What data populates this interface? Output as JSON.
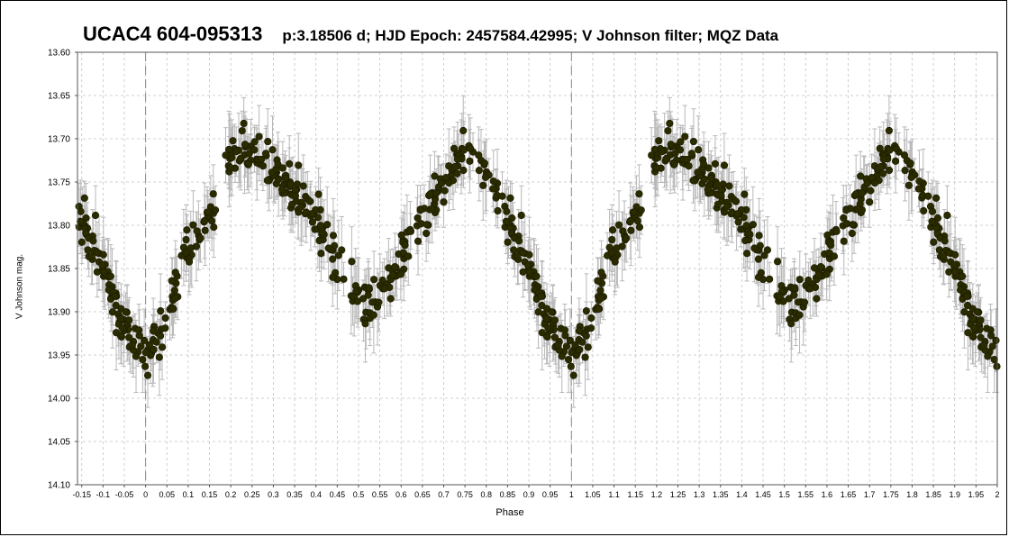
{
  "title": {
    "object": "UCAC4 604-095313",
    "details": "p:3.18506 d;   HJD Epoch: 2457584.42995; V Johnson filter; MQZ Data"
  },
  "chart_data": {
    "type": "scatter",
    "title": "UCAC4 604-095313   p:3.18506 d;   HJD Epoch: 2457584.42995; V Johnson filter; MQZ Data",
    "xlabel": "Phase",
    "ylabel": "V Johnson mag.",
    "xlim": [
      -0.16,
      2.0
    ],
    "ylim": [
      13.6,
      14.1
    ],
    "y_inverted": true,
    "grid": true,
    "error_bars": true,
    "marker_color": "#2b2b00",
    "errorbar_color": "#b8b8b8",
    "x_ticks": [
      "-0.15",
      "-0.1",
      "-0.05",
      "0",
      "0.05",
      "0.1",
      "0.15",
      "0.2",
      "0.25",
      "0.3",
      "0.35",
      "0.4",
      "0.45",
      "0.5",
      "0.55",
      "0.6",
      "0.65",
      "0.7",
      "0.75",
      "0.8",
      "0.85",
      "0.9",
      "0.95",
      "1",
      "1.05",
      "1.1",
      "1.15",
      "1.2",
      "1.25",
      "1.3",
      "1.35",
      "1.4",
      "1.45",
      "1.5",
      "1.55",
      "1.6",
      "1.65",
      "1.7",
      "1.75",
      "1.8",
      "1.85",
      "1.9",
      "1.95",
      "2"
    ],
    "y_ticks": [
      "13.60",
      "13.65",
      "13.70",
      "13.75",
      "13.80",
      "13.85",
      "13.90",
      "13.95",
      "14.00",
      "14.05",
      "14.10"
    ],
    "period_days": 3.18506,
    "epoch_hjd": 2457584.42995,
    "light_curve_nodes": [
      {
        "phase": 0.0,
        "mag": 13.955
      },
      {
        "phase": 0.03,
        "mag": 13.935
      },
      {
        "phase": 0.07,
        "mag": 13.87
      },
      {
        "phase": 0.1,
        "mag": 13.825
      },
      {
        "phase": 0.15,
        "mag": 13.79
      },
      {
        "phase": 0.19,
        "mag": 13.725
      },
      {
        "phase": 0.25,
        "mag": 13.715
      },
      {
        "phase": 0.3,
        "mag": 13.73
      },
      {
        "phase": 0.35,
        "mag": 13.76
      },
      {
        "phase": 0.4,
        "mag": 13.79
      },
      {
        "phase": 0.45,
        "mag": 13.845
      },
      {
        "phase": 0.5,
        "mag": 13.885
      },
      {
        "phase": 0.53,
        "mag": 13.895
      },
      {
        "phase": 0.57,
        "mag": 13.87
      },
      {
        "phase": 0.62,
        "mag": 13.81
      },
      {
        "phase": 0.66,
        "mag": 13.785
      },
      {
        "phase": 0.7,
        "mag": 13.745
      },
      {
        "phase": 0.76,
        "mag": 13.71
      },
      {
        "phase": 0.8,
        "mag": 13.74
      },
      {
        "phase": 0.85,
        "mag": 13.79
      },
      {
        "phase": 0.9,
        "mag": 13.855
      },
      {
        "phase": 0.95,
        "mag": 13.92
      },
      {
        "phase": 1.0,
        "mag": 13.955
      }
    ],
    "dashed_vertical_lines": [
      0,
      1
    ]
  }
}
